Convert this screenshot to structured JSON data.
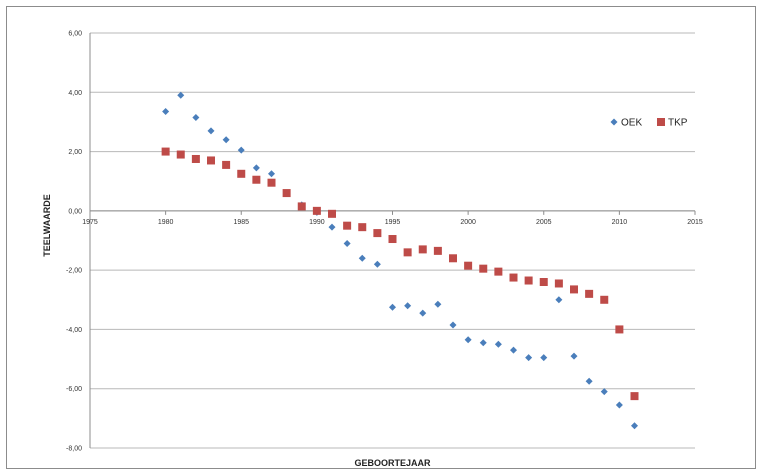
{
  "chart_data": {
    "type": "scatter",
    "title": "",
    "xlabel": "GEBOORTEJAAR",
    "ylabel": "TEELWAARDE",
    "xlim": [
      1975,
      2015
    ],
    "ylim": [
      -8,
      6
    ],
    "xticks": [
      1975,
      1980,
      1985,
      1990,
      1995,
      2000,
      2005,
      2010,
      2015
    ],
    "yticks": [
      -8,
      -6,
      -4,
      -2,
      0,
      2,
      4,
      6
    ],
    "xtick_labels": [
      "1975",
      "1980",
      "1985",
      "1990",
      "1995",
      "2000",
      "2005",
      "2010",
      "2015"
    ],
    "ytick_labels": [
      "-8,00",
      "-6,00",
      "-4,00",
      "-2,00",
      "0,00",
      "2,00",
      "4,00",
      "6,00"
    ],
    "grid": "horizontal",
    "legend_position": "right",
    "series": [
      {
        "name": "OEK",
        "marker": "diamond",
        "color": "#4a7ebb",
        "points": [
          [
            1980,
            3.35
          ],
          [
            1981,
            3.9
          ],
          [
            1982,
            3.15
          ],
          [
            1983,
            2.7
          ],
          [
            1984,
            2.4
          ],
          [
            1985,
            2.05
          ],
          [
            1986,
            1.45
          ],
          [
            1987,
            1.25
          ],
          [
            1988,
            0.6
          ],
          [
            1989,
            0.2
          ],
          [
            1990,
            -0.05
          ],
          [
            1991,
            -0.55
          ],
          [
            1992,
            -1.1
          ],
          [
            1993,
            -1.6
          ],
          [
            1994,
            -1.8
          ],
          [
            1995,
            -3.25
          ],
          [
            1996,
            -3.2
          ],
          [
            1997,
            -3.45
          ],
          [
            1998,
            -3.15
          ],
          [
            1999,
            -3.85
          ],
          [
            2000,
            -4.35
          ],
          [
            2001,
            -4.45
          ],
          [
            2002,
            -4.5
          ],
          [
            2003,
            -4.7
          ],
          [
            2004,
            -4.95
          ],
          [
            2005,
            -4.95
          ],
          [
            2006,
            -3.0
          ],
          [
            2007,
            -4.9
          ],
          [
            2008,
            -5.75
          ],
          [
            2009,
            -6.1
          ],
          [
            2010,
            -6.55
          ],
          [
            2011,
            -7.25
          ]
        ]
      },
      {
        "name": "TKP",
        "marker": "square",
        "color": "#be4b48",
        "points": [
          [
            1980,
            2.0
          ],
          [
            1981,
            1.9
          ],
          [
            1982,
            1.75
          ],
          [
            1983,
            1.7
          ],
          [
            1984,
            1.55
          ],
          [
            1985,
            1.25
          ],
          [
            1986,
            1.05
          ],
          [
            1987,
            0.95
          ],
          [
            1988,
            0.6
          ],
          [
            1989,
            0.15
          ],
          [
            1990,
            0.0
          ],
          [
            1991,
            -0.1
          ],
          [
            1992,
            -0.5
          ],
          [
            1993,
            -0.55
          ],
          [
            1994,
            -0.75
          ],
          [
            1995,
            -0.95
          ],
          [
            1996,
            -1.4
          ],
          [
            1997,
            -1.3
          ],
          [
            1998,
            -1.35
          ],
          [
            1999,
            -1.6
          ],
          [
            2000,
            -1.85
          ],
          [
            2001,
            -1.95
          ],
          [
            2002,
            -2.05
          ],
          [
            2003,
            -2.25
          ],
          [
            2004,
            -2.35
          ],
          [
            2005,
            -2.4
          ],
          [
            2006,
            -2.45
          ],
          [
            2007,
            -2.65
          ],
          [
            2008,
            -2.8
          ],
          [
            2009,
            -3.0
          ],
          [
            2010,
            -4.0
          ],
          [
            2011,
            -6.25
          ]
        ]
      }
    ]
  }
}
